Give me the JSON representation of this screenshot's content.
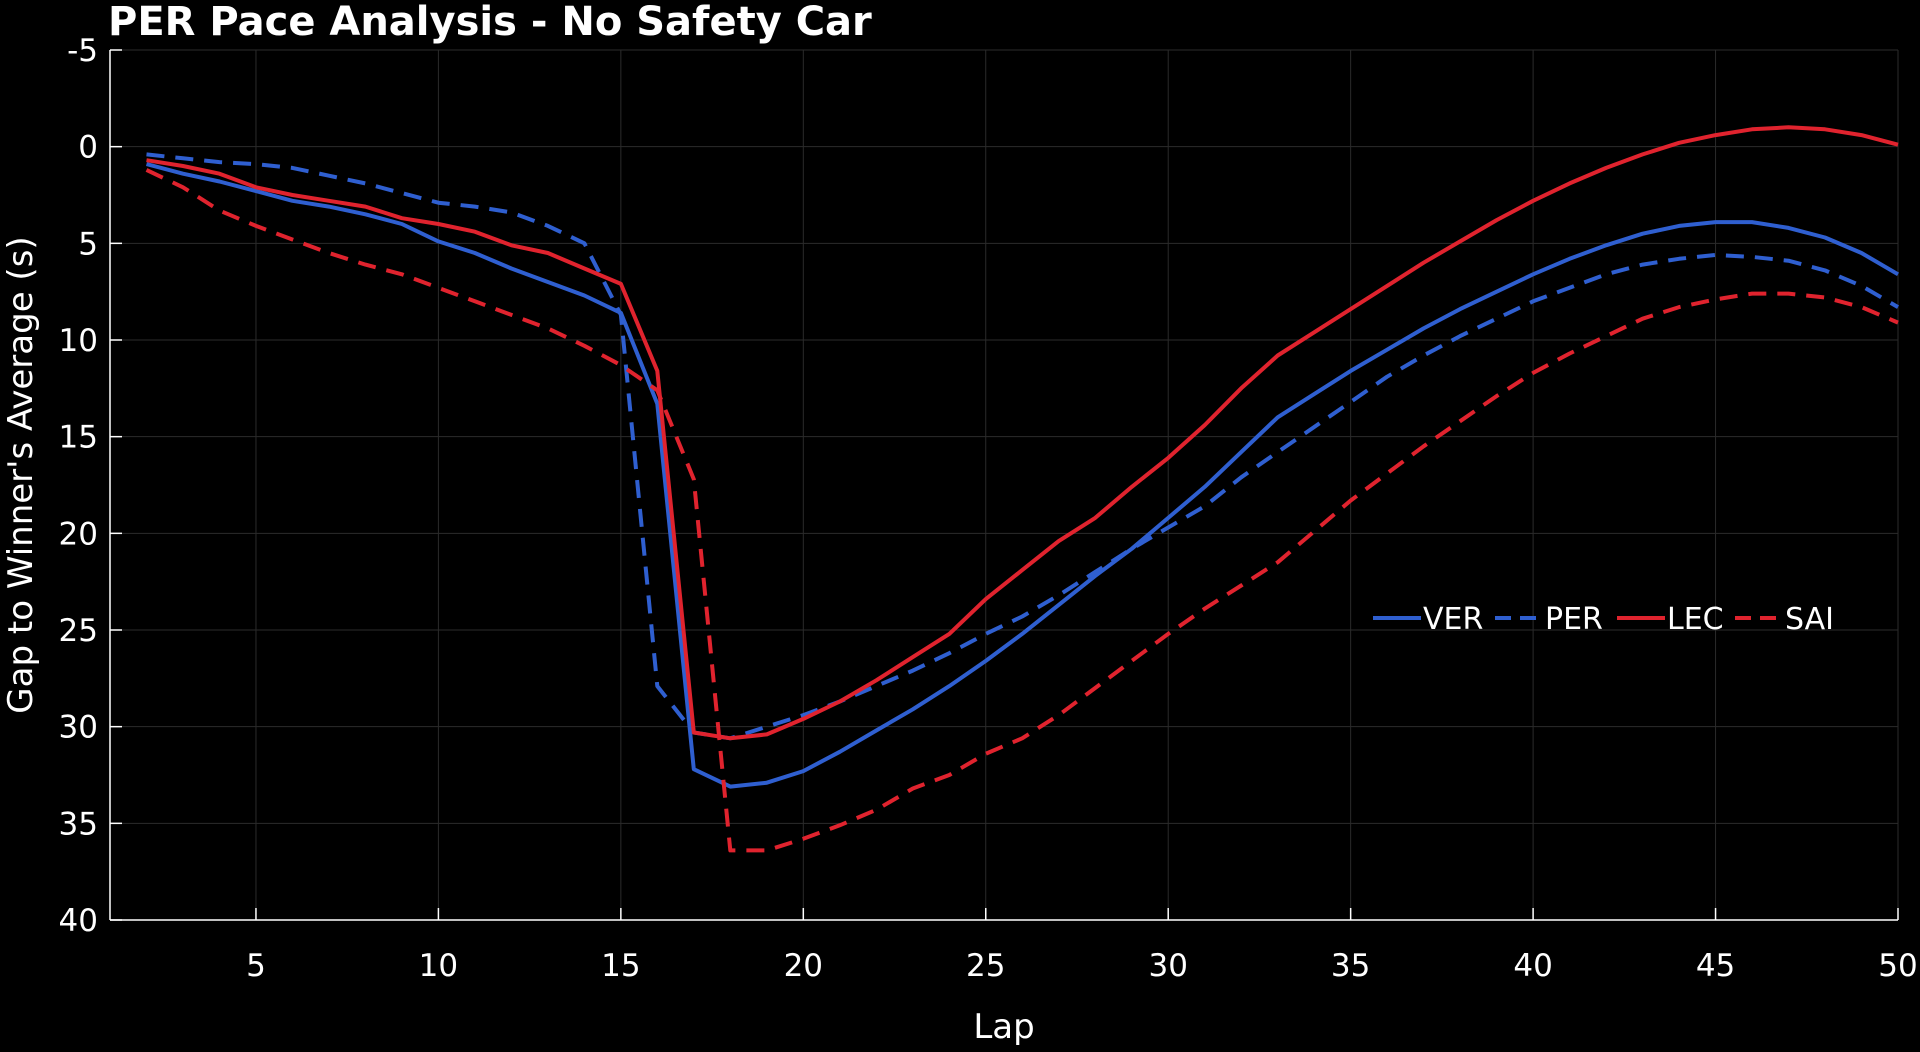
{
  "chart_data": {
    "type": "line",
    "title": "PER Pace Analysis - No Safety Car",
    "xlabel": "Lap",
    "ylabel": "Gap to Winner's Average (s)",
    "xlim": [
      1,
      50
    ],
    "ylim": [
      -5,
      40
    ],
    "y_inverted": true,
    "grid": true,
    "legend_position": "right-center",
    "x_ticks": [
      5,
      10,
      15,
      20,
      25,
      30,
      35,
      40,
      45,
      50
    ],
    "y_ticks": [
      -5,
      0,
      5,
      10,
      15,
      20,
      25,
      30,
      35,
      40
    ],
    "background_color": "#000000",
    "grid_color": "#2b2b2b",
    "series": [
      {
        "name": "VER",
        "color": "#2f5fd0",
        "dash": "solid",
        "x": [
          2,
          3,
          4,
          5,
          6,
          7,
          8,
          9,
          10,
          11,
          12,
          13,
          14,
          15,
          16,
          17,
          18,
          19,
          20,
          21,
          22,
          23,
          24,
          25,
          26,
          27,
          28,
          29,
          30,
          31,
          32,
          33,
          34,
          35,
          36,
          37,
          38,
          39,
          40,
          41,
          42,
          43,
          44,
          45,
          46,
          47,
          48,
          49,
          50
        ],
        "y": [
          0.9,
          1.4,
          1.8,
          2.3,
          2.8,
          3.1,
          3.5,
          4.0,
          4.9,
          5.5,
          6.3,
          7.0,
          7.7,
          8.6,
          13.3,
          32.2,
          33.1,
          32.9,
          32.3,
          31.3,
          30.2,
          29.1,
          27.9,
          26.6,
          25.2,
          23.7,
          22.2,
          20.8,
          19.2,
          17.6,
          15.8,
          14.0,
          12.8,
          11.6,
          10.5,
          9.4,
          8.4,
          7.5,
          6.6,
          5.8,
          5.1,
          4.5,
          4.1,
          3.9,
          3.9,
          4.2,
          4.7,
          5.5,
          6.6
        ]
      },
      {
        "name": "PER",
        "color": "#2f5fd0",
        "dash": "dashed",
        "x": [
          2,
          3,
          4,
          5,
          6,
          7,
          8,
          9,
          10,
          11,
          12,
          13,
          14,
          15,
          16,
          17,
          18,
          19,
          20,
          21,
          22,
          23,
          24,
          25,
          26,
          27,
          28,
          29,
          30,
          31,
          32,
          33,
          34,
          35,
          36,
          37,
          38,
          39,
          40,
          41,
          42,
          43,
          44,
          45,
          46,
          47,
          48,
          49,
          50
        ],
        "y": [
          0.4,
          0.6,
          0.8,
          0.9,
          1.1,
          1.5,
          1.9,
          2.4,
          2.9,
          3.1,
          3.4,
          4.1,
          5.0,
          8.7,
          27.9,
          30.3,
          30.6,
          30.0,
          29.4,
          28.7,
          27.9,
          27.1,
          26.2,
          25.2,
          24.3,
          23.2,
          22.0,
          20.8,
          19.7,
          18.6,
          17.1,
          15.8,
          14.5,
          13.2,
          11.9,
          10.8,
          9.8,
          8.9,
          8.0,
          7.3,
          6.6,
          6.1,
          5.8,
          5.6,
          5.7,
          5.9,
          6.4,
          7.2,
          8.3
        ]
      },
      {
        "name": "LEC",
        "color": "#e0232e",
        "dash": "solid",
        "x": [
          2,
          3,
          4,
          5,
          6,
          7,
          8,
          9,
          10,
          11,
          12,
          13,
          14,
          15,
          16,
          17,
          18,
          19,
          20,
          21,
          22,
          23,
          24,
          25,
          26,
          27,
          28,
          29,
          30,
          31,
          32,
          33,
          34,
          35,
          36,
          37,
          38,
          39,
          40,
          41,
          42,
          43,
          44,
          45,
          46,
          47,
          48,
          49,
          50
        ],
        "y": [
          0.7,
          1.0,
          1.4,
          2.1,
          2.5,
          2.8,
          3.1,
          3.7,
          4.0,
          4.4,
          5.1,
          5.5,
          6.3,
          7.1,
          11.6,
          30.3,
          30.6,
          30.4,
          29.6,
          28.7,
          27.6,
          26.4,
          25.2,
          23.4,
          21.9,
          20.4,
          19.2,
          17.6,
          16.1,
          14.4,
          12.5,
          10.8,
          9.6,
          8.4,
          7.2,
          6.0,
          4.9,
          3.8,
          2.8,
          1.9,
          1.1,
          0.4,
          -0.2,
          -0.6,
          -0.9,
          -1.0,
          -0.9,
          -0.6,
          -0.1
        ]
      },
      {
        "name": "SAI",
        "color": "#e0232e",
        "dash": "dashed",
        "x": [
          2,
          3,
          4,
          5,
          6,
          7,
          8,
          9,
          10,
          11,
          12,
          13,
          14,
          15,
          16,
          17,
          18,
          19,
          20,
          21,
          22,
          23,
          24,
          25,
          26,
          27,
          28,
          29,
          30,
          31,
          32,
          33,
          34,
          35,
          36,
          37,
          38,
          39,
          40,
          41,
          42,
          43,
          44,
          45,
          46,
          47,
          48,
          49,
          50
        ],
        "y": [
          1.2,
          2.1,
          3.3,
          4.1,
          4.8,
          5.5,
          6.1,
          6.6,
          7.3,
          8.0,
          8.7,
          9.4,
          10.3,
          11.3,
          12.6,
          17.2,
          36.4,
          36.4,
          35.8,
          35.1,
          34.3,
          33.2,
          32.5,
          31.4,
          30.6,
          29.4,
          28.0,
          26.6,
          25.2,
          23.9,
          22.7,
          21.5,
          19.9,
          18.3,
          16.9,
          15.5,
          14.2,
          12.9,
          11.7,
          10.7,
          9.8,
          8.9,
          8.3,
          7.9,
          7.6,
          7.6,
          7.8,
          8.3,
          9.1
        ]
      }
    ]
  }
}
